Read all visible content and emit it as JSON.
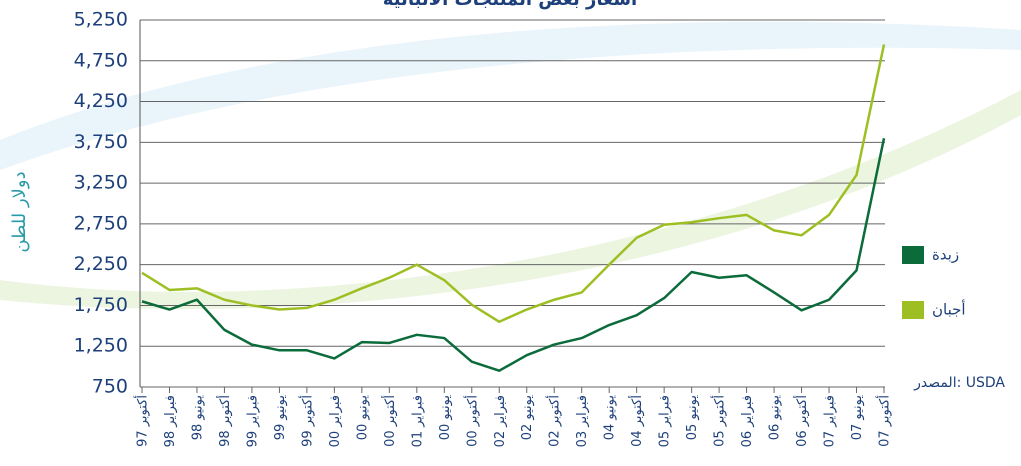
{
  "chart_data": {
    "type": "line",
    "title": "أسعار بعض المنتجات الألبانية",
    "y_label": "دولار للطن",
    "source": "المصدر: USDA",
    "categories": [
      "أكتوبر 97",
      "فبراير 98",
      "يونيو 98",
      "أكتوبر 98",
      "فبراير 99",
      "يونيو 99",
      "أكتوبر 99",
      "فبراير 00",
      "يونيو 00",
      "أكتوبر 00",
      "فبراير 01",
      "يونيو 00",
      "أكتوبر 00",
      "فبراير 02",
      "يونيو 02",
      "أكتوبر 02",
      "فبراير 03",
      "يونيو 04",
      "أكتوبر 04",
      "فبراير 05",
      "يونيو 05",
      "أكتوبر 05",
      "فبراير 06",
      "يونيو 06",
      "أكتوبر 06",
      "فبراير 07",
      "يونيو 07",
      "أكتوبر 07"
    ],
    "series": [
      {
        "name": "زبدة",
        "color": "#0b6b3a",
        "values": [
          1800,
          1700,
          1820,
          1450,
          1270,
          1200,
          1200,
          1100,
          1300,
          1290,
          1390,
          1350,
          1060,
          950,
          1140,
          1270,
          1350,
          1510,
          1630,
          1840,
          2160,
          2090,
          2120,
          1910,
          1690,
          1820,
          2180,
          3800
        ]
      },
      {
        "name": "أجبان",
        "color": "#9dbf23",
        "values": [
          2150,
          1940,
          1960,
          1820,
          1750,
          1700,
          1720,
          1820,
          1960,
          2090,
          2250,
          2060,
          1760,
          1550,
          1700,
          1820,
          1910,
          2250,
          2580,
          2740,
          2770,
          2820,
          2860,
          2670,
          2610,
          2860,
          3350,
          4950
        ]
      }
    ],
    "ylim": [
      750,
      5250
    ],
    "yticks": [
      750,
      {
        "value": 1250,
        "label": "1,250"
      },
      {
        "value": 1750,
        "label": "1,750"
      },
      {
        "value": 2250,
        "label": "2,250"
      },
      {
        "value": 2750,
        "label": "2,750"
      },
      {
        "value": 3250,
        "label": "3,250"
      },
      {
        "value": 3750,
        "label": "3,750"
      },
      {
        "value": 4250,
        "label": "4,250"
      },
      {
        "value": 4750,
        "label": "4,750"
      },
      {
        "value": 5250,
        "label": "5,250"
      }
    ],
    "grid": true,
    "legend": "right"
  }
}
